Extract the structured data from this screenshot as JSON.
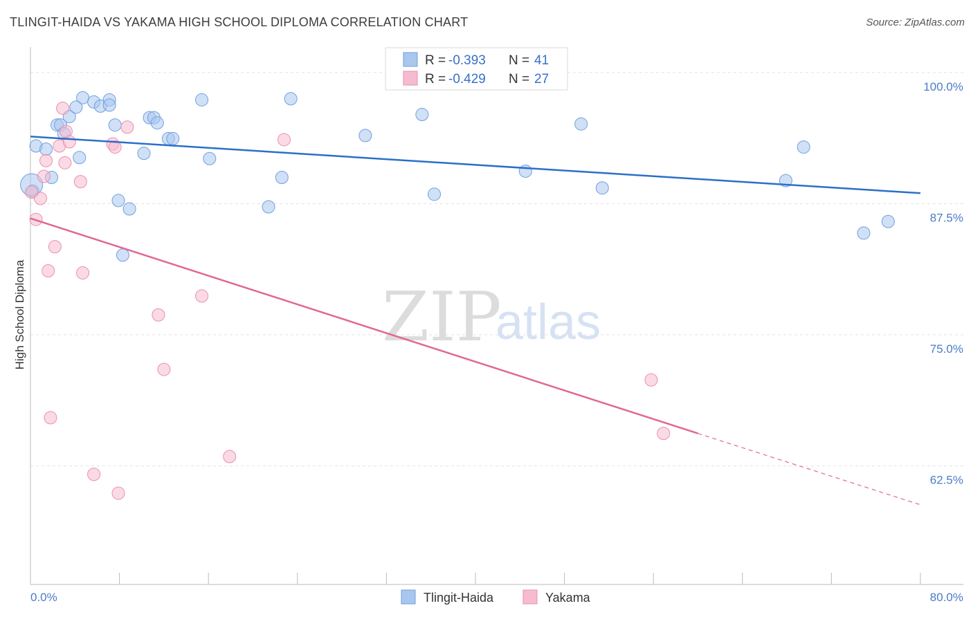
{
  "title": "TLINGIT-HAIDA VS YAKAMA HIGH SCHOOL DIPLOMA CORRELATION CHART",
  "source": "Source: ZipAtlas.com",
  "watermark": {
    "zip": "ZIP",
    "atlas": "atlas"
  },
  "legend": {
    "r_label": "R =",
    "n_label": "N =",
    "rows": [
      {
        "r": "-0.393",
        "n": "41"
      },
      {
        "r": "-0.429",
        "n": "27"
      }
    ]
  },
  "colors": {
    "blue_fill": "#a9c6ef",
    "blue_stroke": "#6f9fde",
    "blue_line": "#2a6fca",
    "pink_fill": "#f5bccf",
    "pink_stroke": "#ec8eae",
    "pink_line": "#e06794"
  },
  "chart_data": {
    "type": "scatter",
    "title": "TLINGIT-HAIDA VS YAKAMA HIGH SCHOOL DIPLOMA CORRELATION CHART",
    "xlabel": "",
    "ylabel": "High School Diploma",
    "xlim": [
      0,
      80
    ],
    "ylim": [
      51.2,
      102.3
    ],
    "x_tick_labels": [
      "0.0%",
      "80.0%"
    ],
    "y_ticks": [
      100.0,
      87.5,
      75.0,
      62.5
    ],
    "y_tick_labels": [
      "100.0%",
      "87.5%",
      "75.0%",
      "62.5%"
    ],
    "grid": true,
    "legend_position": "top-center",
    "series": [
      {
        "name": "Tlingit-Haida",
        "points": [
          [
            0.2,
            88.7
          ],
          [
            0.5,
            93.0
          ],
          [
            1.4,
            92.7
          ],
          [
            1.9,
            90.0
          ],
          [
            2.4,
            95.0
          ],
          [
            2.7,
            95.0
          ],
          [
            3.0,
            94.2
          ],
          [
            3.5,
            95.8
          ],
          [
            4.4,
            91.9
          ],
          [
            4.7,
            97.6
          ],
          [
            4.1,
            96.7
          ],
          [
            5.7,
            97.2
          ],
          [
            6.3,
            96.8
          ],
          [
            7.1,
            97.4
          ],
          [
            7.1,
            96.9
          ],
          [
            7.6,
            95.0
          ],
          [
            7.9,
            87.8
          ],
          [
            8.3,
            82.6
          ],
          [
            8.9,
            87.0
          ],
          [
            10.2,
            92.3
          ],
          [
            10.7,
            95.7
          ],
          [
            11.1,
            95.7
          ],
          [
            11.4,
            95.2
          ],
          [
            12.4,
            93.7
          ],
          [
            12.8,
            93.7
          ],
          [
            15.4,
            97.4
          ],
          [
            16.1,
            91.8
          ],
          [
            21.4,
            87.2
          ],
          [
            22.6,
            90.0
          ],
          [
            23.4,
            97.5
          ],
          [
            30.1,
            94.0
          ],
          [
            35.2,
            96.0
          ],
          [
            36.3,
            88.4
          ],
          [
            44.5,
            90.6
          ],
          [
            49.5,
            95.1
          ],
          [
            51.4,
            89.0
          ],
          [
            67.9,
            89.7
          ],
          [
            69.5,
            92.9
          ],
          [
            74.9,
            84.7
          ],
          [
            77.1,
            85.8
          ],
          [
            0.1,
            89.3
          ]
        ],
        "trend": {
          "x": [
            0,
            80
          ],
          "y": [
            93.9,
            88.5
          ]
        }
      },
      {
        "name": "Yakama",
        "points": [
          [
            0.1,
            88.6
          ],
          [
            0.5,
            86.0
          ],
          [
            0.9,
            88.0
          ],
          [
            1.2,
            90.1
          ],
          [
            1.4,
            91.6
          ],
          [
            1.6,
            81.1
          ],
          [
            1.8,
            67.1
          ],
          [
            2.2,
            83.4
          ],
          [
            2.6,
            93.0
          ],
          [
            2.9,
            96.6
          ],
          [
            3.1,
            91.4
          ],
          [
            3.2,
            94.4
          ],
          [
            3.5,
            93.4
          ],
          [
            4.5,
            89.6
          ],
          [
            4.7,
            80.9
          ],
          [
            5.7,
            61.7
          ],
          [
            7.4,
            93.2
          ],
          [
            7.6,
            92.9
          ],
          [
            7.9,
            59.9
          ],
          [
            8.7,
            94.8
          ],
          [
            11.5,
            76.9
          ],
          [
            12.0,
            71.7
          ],
          [
            15.4,
            78.7
          ],
          [
            17.9,
            63.4
          ],
          [
            22.8,
            93.6
          ],
          [
            55.8,
            70.7
          ],
          [
            56.9,
            65.6
          ]
        ],
        "trend": {
          "x": [
            0,
            60
          ],
          "y": [
            86.1,
            65.6
          ],
          "dashed_to": {
            "x": 80,
            "y": 58.8
          }
        }
      }
    ]
  },
  "bottom_legend": [
    "Tlingit-Haida",
    "Yakama"
  ]
}
